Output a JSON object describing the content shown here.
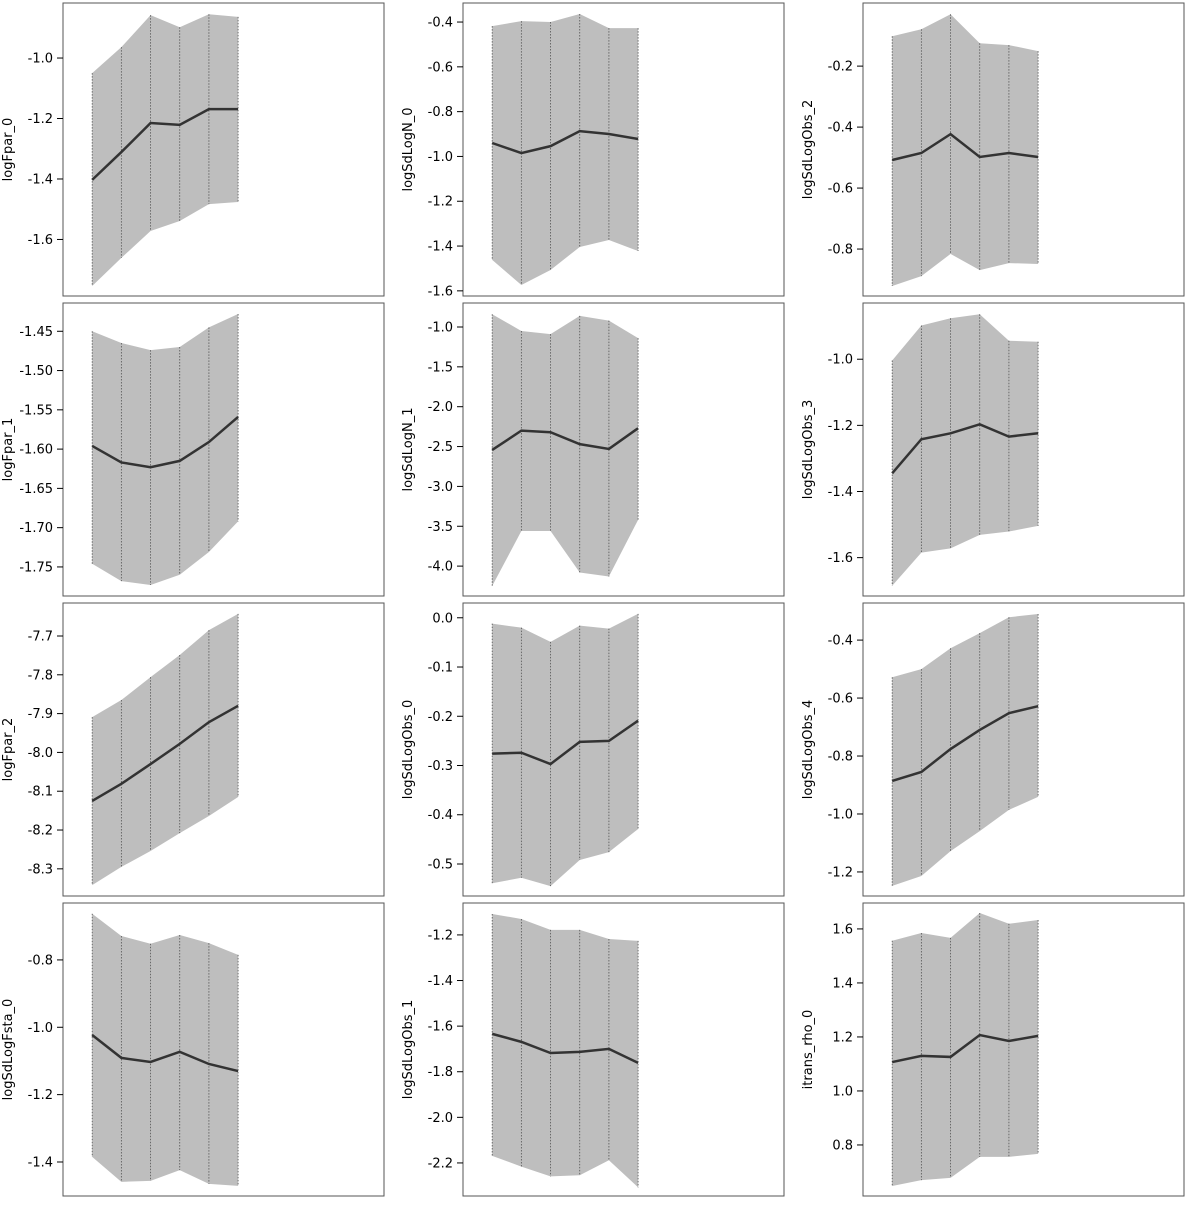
{
  "chart_data": [
    {
      "type": "area",
      "ylabel": "logFpar_0",
      "x": [
        1,
        2,
        3,
        4,
        5,
        6
      ],
      "xlim": [
        0,
        11
      ],
      "ylim": [
        -1.787,
        -0.818
      ],
      "yticks": [
        -1.6,
        -1.4,
        -1.2,
        -1.0
      ],
      "ytick_labels": [
        "-1.6",
        "-1.4",
        "-1.2",
        "-1.0"
      ],
      "estimate": [
        -1.403,
        -1.311,
        -1.215,
        -1.221,
        -1.169,
        -1.169
      ],
      "upper": [
        -1.05,
        -0.964,
        -0.858,
        -0.898,
        -0.855,
        -0.864
      ],
      "lower": [
        -1.754,
        -1.661,
        -1.572,
        -1.539,
        -1.483,
        -1.476
      ]
    },
    {
      "type": "area",
      "ylabel": "logSdLogN_0",
      "x": [
        1,
        2,
        3,
        4,
        5,
        6
      ],
      "xlim": [
        0,
        11
      ],
      "ylim": [
        -1.623,
        -0.315
      ],
      "yticks": [
        -1.6,
        -1.4,
        -1.2,
        -1.0,
        -0.8,
        -0.6,
        -0.4
      ],
      "ytick_labels": [
        "-1.6",
        "-1.4",
        "-1.2",
        "-1.0",
        "-0.8",
        "-0.6",
        "-0.4"
      ],
      "estimate": [
        -0.94,
        -0.985,
        -0.954,
        -0.887,
        -0.9,
        -0.922
      ],
      "upper": [
        -0.418,
        -0.396,
        -0.4,
        -0.364,
        -0.427,
        -0.427
      ],
      "lower": [
        -1.462,
        -1.574,
        -1.507,
        -1.404,
        -1.373,
        -1.422
      ]
    },
    {
      "type": "area",
      "ylabel": "logSdLogObs_2",
      "x": [
        1,
        2,
        3,
        4,
        5,
        6
      ],
      "xlim": [
        0,
        11
      ],
      "ylim": [
        -0.954,
        0.007
      ],
      "yticks": [
        -0.8,
        -0.6,
        -0.4,
        -0.2
      ],
      "ytick_labels": [
        "-0.8",
        "-0.6",
        "-0.4",
        "-0.2"
      ],
      "estimate": [
        -0.508,
        -0.485,
        -0.423,
        -0.498,
        -0.485,
        -0.498
      ],
      "upper": [
        -0.102,
        -0.079,
        -0.03,
        -0.125,
        -0.131,
        -0.151
      ],
      "lower": [
        -0.921,
        -0.889,
        -0.816,
        -0.869,
        -0.846,
        -0.849
      ]
    },
    {
      "type": "area",
      "ylabel": "logFpar_1",
      "x": [
        1,
        2,
        3,
        4,
        5,
        6
      ],
      "xlim": [
        0,
        11
      ],
      "ylim": [
        -1.787,
        -1.414
      ],
      "yticks": [
        -1.75,
        -1.7,
        -1.65,
        -1.6,
        -1.55,
        -1.5,
        -1.45
      ],
      "ytick_labels": [
        "-1.75",
        "-1.70",
        "-1.65",
        "-1.60",
        "-1.55",
        "-1.50",
        "-1.45"
      ],
      "estimate": [
        -1.596,
        -1.617,
        -1.623,
        -1.615,
        -1.591,
        -1.559
      ],
      "upper": [
        -1.45,
        -1.465,
        -1.474,
        -1.47,
        -1.445,
        -1.428
      ],
      "lower": [
        -1.746,
        -1.768,
        -1.773,
        -1.76,
        -1.731,
        -1.692
      ]
    },
    {
      "type": "area",
      "ylabel": "logSdLogN_1",
      "x": [
        1,
        2,
        3,
        4,
        5,
        6
      ],
      "xlim": [
        0,
        11
      ],
      "ylim": [
        -4.375,
        -0.699
      ],
      "yticks": [
        -4.0,
        -3.5,
        -3.0,
        -2.5,
        -2.0,
        -1.5,
        -1.0
      ],
      "ytick_labels": [
        "-4.0",
        "-3.5",
        "-3.0",
        "-2.5",
        "-2.0",
        "-1.5",
        "-1.0"
      ],
      "estimate": [
        -2.543,
        -2.3,
        -2.32,
        -2.47,
        -2.53,
        -2.27
      ],
      "upper": [
        -0.84,
        -1.05,
        -1.09,
        -0.86,
        -0.92,
        -1.14
      ],
      "lower": [
        -4.25,
        -3.56,
        -3.56,
        -4.08,
        -4.13,
        -3.42
      ]
    },
    {
      "type": "area",
      "ylabel": "logSdLogObs_3",
      "x": [
        1,
        2,
        3,
        4,
        5,
        6
      ],
      "xlim": [
        0,
        11
      ],
      "ylim": [
        -1.716,
        -0.83
      ],
      "yticks": [
        -1.6,
        -1.4,
        -1.2,
        -1.0
      ],
      "ytick_labels": [
        "-1.6",
        "-1.4",
        "-1.2",
        "-1.0"
      ],
      "estimate": [
        -1.345,
        -1.242,
        -1.224,
        -1.197,
        -1.234,
        -1.224
      ],
      "upper": [
        -1.004,
        -0.898,
        -0.876,
        -0.864,
        -0.944,
        -0.947
      ],
      "lower": [
        -1.685,
        -1.585,
        -1.572,
        -1.531,
        -1.521,
        -1.504
      ]
    },
    {
      "type": "area",
      "ylabel": "logFpar_2",
      "x": [
        1,
        2,
        3,
        4,
        5,
        6
      ],
      "xlim": [
        0,
        11
      ],
      "ylim": [
        -8.37,
        -7.615
      ],
      "yticks": [
        -8.3,
        -8.2,
        -8.1,
        -8.0,
        -7.9,
        -7.8,
        -7.7
      ],
      "ytick_labels": [
        "-8.3",
        "-8.2",
        "-8.1",
        "-8.0",
        "-7.9",
        "-7.8",
        "-7.7"
      ],
      "estimate": [
        -8.125,
        -8.081,
        -8.03,
        -7.978,
        -7.922,
        -7.88
      ],
      "upper": [
        -7.909,
        -7.865,
        -7.806,
        -7.749,
        -7.685,
        -7.643
      ],
      "lower": [
        -8.342,
        -8.295,
        -8.254,
        -8.208,
        -8.164,
        -8.115
      ]
    },
    {
      "type": "area",
      "ylabel": "logSdLogObs_0",
      "x": [
        1,
        2,
        3,
        4,
        5,
        6
      ],
      "xlim": [
        0,
        11
      ],
      "ylim": [
        -0.565,
        0.03
      ],
      "yticks": [
        -0.5,
        -0.4,
        -0.3,
        -0.2,
        -0.1,
        0.0
      ],
      "ytick_labels": [
        "-0.5",
        "-0.4",
        "-0.3",
        "-0.2",
        "-0.1",
        "0.0"
      ],
      "estimate": [
        -0.276,
        -0.274,
        -0.297,
        -0.252,
        -0.25,
        -0.209
      ],
      "upper": [
        -0.012,
        -0.02,
        -0.049,
        -0.016,
        -0.022,
        0.008
      ],
      "lower": [
        -0.539,
        -0.528,
        -0.545,
        -0.492,
        -0.476,
        -0.429
      ]
    },
    {
      "type": "area",
      "ylabel": "logSdLogObs_4",
      "x": [
        1,
        2,
        3,
        4,
        5,
        6
      ],
      "xlim": [
        0,
        11
      ],
      "ylim": [
        -1.283,
        -0.272
      ],
      "yticks": [
        -1.2,
        -1.0,
        -0.8,
        -0.6,
        -0.4
      ],
      "ytick_labels": [
        "-1.2",
        "-1.0",
        "-0.8",
        "-0.6",
        "-0.4"
      ],
      "estimate": [
        -0.886,
        -0.855,
        -0.776,
        -0.71,
        -0.652,
        -0.628
      ],
      "upper": [
        -0.528,
        -0.5,
        -0.428,
        -0.376,
        -0.321,
        -0.31
      ],
      "lower": [
        -1.248,
        -1.214,
        -1.128,
        -1.059,
        -0.986,
        -0.941
      ]
    },
    {
      "type": "area",
      "ylabel": "logSdLogFsta_0",
      "x": [
        1,
        2,
        3,
        4,
        5,
        6
      ],
      "xlim": [
        0,
        11
      ],
      "ylim": [
        -1.501,
        -0.631
      ],
      "yticks": [
        -1.4,
        -1.2,
        -1.0,
        -0.8
      ],
      "ytick_labels": [
        "-1.4",
        "-1.2",
        "-1.0",
        "-0.8"
      ],
      "estimate": [
        -1.023,
        -1.091,
        -1.103,
        -1.073,
        -1.109,
        -1.13
      ],
      "upper": [
        -0.663,
        -0.729,
        -0.752,
        -0.726,
        -0.75,
        -0.785
      ],
      "lower": [
        -1.385,
        -1.459,
        -1.456,
        -1.424,
        -1.465,
        -1.471
      ]
    },
    {
      "type": "area",
      "ylabel": "logSdLogObs_1",
      "x": [
        1,
        2,
        3,
        4,
        5,
        6
      ],
      "xlim": [
        0,
        11
      ],
      "ylim": [
        -2.345,
        -1.06
      ],
      "yticks": [
        -2.2,
        -2.0,
        -1.8,
        -1.6,
        -1.4,
        -1.2
      ],
      "ytick_labels": [
        "-2.2",
        "-2.0",
        "-1.8",
        "-1.6",
        "-1.4",
        "-1.2"
      ],
      "estimate": [
        -1.634,
        -1.669,
        -1.718,
        -1.713,
        -1.7,
        -1.761
      ],
      "upper": [
        -1.108,
        -1.13,
        -1.178,
        -1.178,
        -1.218,
        -1.226
      ],
      "lower": [
        -2.169,
        -2.216,
        -2.259,
        -2.254,
        -2.188,
        -2.307
      ]
    },
    {
      "type": "area",
      "ylabel": "itrans_rho_0",
      "x": [
        1,
        2,
        3,
        4,
        5,
        6
      ],
      "xlim": [
        0,
        11
      ],
      "ylim": [
        0.611,
        1.696
      ],
      "yticks": [
        0.8,
        1.0,
        1.2,
        1.4,
        1.6
      ],
      "ytick_labels": [
        "0.8",
        "1.0",
        "1.2",
        "1.4",
        "1.6"
      ],
      "estimate": [
        1.107,
        1.13,
        1.126,
        1.207,
        1.185,
        1.204
      ],
      "upper": [
        1.556,
        1.585,
        1.567,
        1.659,
        1.619,
        1.633
      ],
      "lower": [
        0.648,
        0.67,
        0.678,
        0.756,
        0.756,
        0.767
      ]
    }
  ],
  "colors": {
    "band": "#bebebe",
    "line": "#333333",
    "dotted": "#555555",
    "frame": "#555555"
  }
}
